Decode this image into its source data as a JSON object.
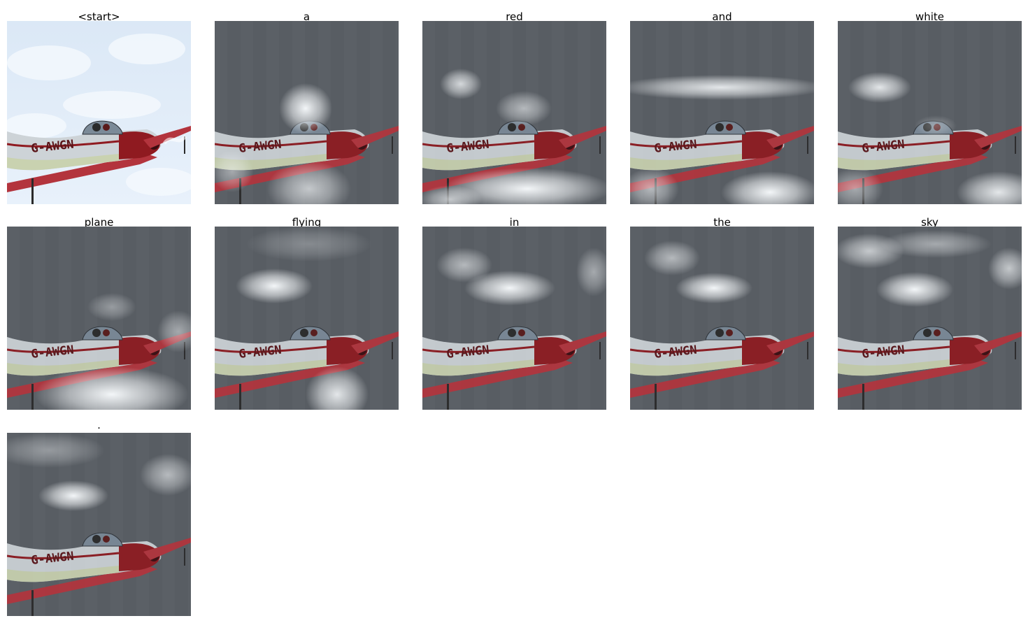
{
  "panels": [
    {
      "word": "<start>",
      "image": "original-photo",
      "attention": null
    },
    {
      "word": "a",
      "image": "attention-heatmap-overlay",
      "attention": "lower-center"
    },
    {
      "word": "red",
      "image": "attention-heatmap-overlay",
      "attention": "upper-left and bottom"
    },
    {
      "word": "and",
      "image": "attention-heatmap-overlay",
      "attention": "horizontal band and bottom"
    },
    {
      "word": "white",
      "image": "attention-heatmap-overlay",
      "attention": "upper-left and bottom-right"
    },
    {
      "word": "plane",
      "image": "attention-heatmap-overlay",
      "attention": "bottom"
    },
    {
      "word": "flying",
      "image": "attention-heatmap-overlay",
      "attention": "upper-center and bottom-center"
    },
    {
      "word": "in",
      "image": "attention-heatmap-overlay",
      "attention": "upper-center"
    },
    {
      "word": "the",
      "image": "attention-heatmap-overlay",
      "attention": "upper-center"
    },
    {
      "word": "sky",
      "image": "attention-heatmap-overlay",
      "attention": "upper region"
    },
    {
      "word": ".",
      "image": "attention-heatmap-overlay",
      "attention": "upper-left"
    }
  ],
  "plane_registration": "G-AWGN",
  "colors": {
    "background": "#ffffff",
    "sky_light": "#e8f1fb",
    "overlay_dark": "#585d63",
    "overlay_light": "#f3f6f8",
    "fuselage_red": "#8f1a20",
    "wing_red": "#b3343d",
    "fuselage_white": "#cdd3d7"
  }
}
